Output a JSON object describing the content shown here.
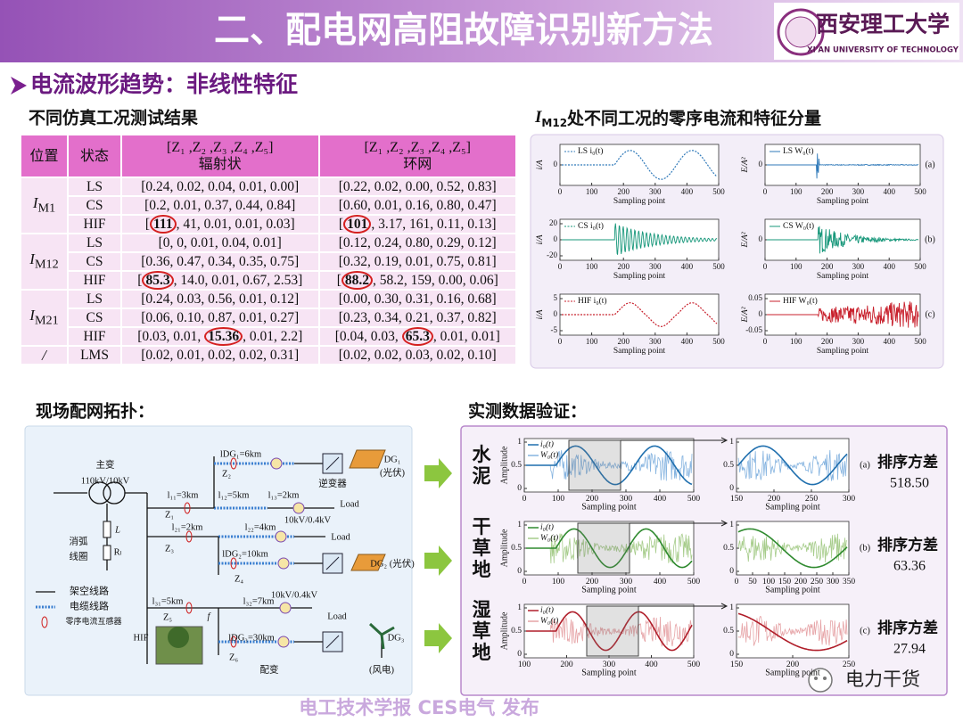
{
  "header": {
    "title": "二、配电网高阻故障识别新方法",
    "logo_name": "西安理工大学",
    "logo_sub": "XI'AN UNIVERSITY OF TECHNOLOGY"
  },
  "section": "电流波形趋势：非线性特征",
  "table": {
    "title": "不同仿真工况测试结果",
    "headers": [
      "位置",
      "状态",
      {
        "vector": "[Z₁ ,Z₂ ,Z₃ ,Z₄ ,Z₅]",
        "name": "辐射状"
      },
      {
        "vector": "[Z₁ ,Z₂ ,Z₃ ,Z₄ ,Z₅]",
        "name": "环网"
      }
    ],
    "groups": [
      {
        "position": {
          "main": "I",
          "sub": "M1"
        },
        "rows": [
          {
            "state": "LS",
            "radial": "[0.24, 0.02, 0.04, 0.01, 0.00]",
            "ring": "[0.22, 0.02, 0.00, 0.52, 0.83]"
          },
          {
            "state": "CS",
            "radial": "[0.2, 0.01, 0.37, 0.44, 0.84]",
            "ring": "[0.60, 0.01, 0.16, 0.80, 0.47]"
          },
          {
            "state": "HIF",
            "radial": {
              "before": "[",
              "circled": "111",
              "after": ", 41, 0.01, 0.01, 0.03]"
            },
            "ring": {
              "before": "[",
              "circled": "101",
              "after": ", 3.17, 161, 0.11, 0.13]"
            }
          }
        ]
      },
      {
        "position": {
          "main": "I",
          "sub": "M12"
        },
        "rows": [
          {
            "state": "LS",
            "radial": "[0, 0, 0.01, 0.04, 0.01]",
            "ring": "[0.12, 0.24, 0.80, 0.29, 0.12]"
          },
          {
            "state": "CS",
            "radial": "[0.36, 0.47, 0.34, 0.35, 0.75]",
            "ring": "[0.32, 0.19, 0.01, 0.75, 0.81]"
          },
          {
            "state": "HIF",
            "radial": {
              "before": "[",
              "circled": "85.3",
              "after": ", 14.0, 0.01, 0.67, 2.53]"
            },
            "ring": {
              "before": "[",
              "circled": "88.2",
              "after": ", 58.2, 159, 0.00, 0.06]"
            }
          }
        ]
      },
      {
        "position": {
          "main": "I",
          "sub": "M21"
        },
        "rows": [
          {
            "state": "LS",
            "radial": "[0.24, 0.03, 0.56, 0.01, 0.12]",
            "ring": "[0.00, 0.30, 0.31, 0.16, 0.68]"
          },
          {
            "state": "CS",
            "radial": "[0.06, 0.10, 0.87, 0.01, 0.27]",
            "ring": "[0.23, 0.34, 0.21, 0.37, 0.82]"
          },
          {
            "state": "HIF",
            "radial": {
              "before": "[0.03, 0.01, ",
              "circled": "15.36",
              "after": ", 0.01, 2.2]"
            },
            "ring": {
              "before": "[0.04, 0.03, ",
              "circled": "65.3",
              "after": ", 0.01, 0.01]"
            }
          }
        ]
      },
      {
        "position": {
          "main": "/"
        },
        "rows": [
          {
            "state": "LMS",
            "radial": "[0.02, 0.01, 0.02, 0.02, 0.31]",
            "ring": "[0.02, 0.02, 0.03, 0.02, 0.10]"
          }
        ]
      }
    ]
  },
  "current_features": {
    "title_main": "I",
    "title_sub": "M12",
    "title_rest": "处不同工况的零序电流和特征分量",
    "xlabel": "Sampling point",
    "xticks": [
      0,
      100,
      200,
      300,
      400,
      500
    ],
    "panels": [
      {
        "tag": "(a)",
        "color": "#2f79b9",
        "left": {
          "ylabel": "i/A",
          "legend": "LS i₀(t)",
          "yticks": [
            0
          ]
        },
        "right": {
          "ylabel": "E/A²",
          "legend": "LS W₀(t)",
          "yticks": [
            0
          ]
        }
      },
      {
        "tag": "(b)",
        "color": "#17977a",
        "left": {
          "ylabel": "i/A",
          "legend": "CS i₀(t)",
          "yticks": [
            20,
            0,
            -20
          ]
        },
        "right": {
          "ylabel": "E/A²",
          "legend": "CS W₀(t)",
          "yticks": [
            0
          ]
        }
      },
      {
        "tag": "(c)",
        "color": "#c8202c",
        "left": {
          "ylabel": "i/A",
          "legend": "HIF i₀(t)",
          "yticks": [
            5,
            0,
            -5
          ]
        },
        "right": {
          "ylabel": "E/A²",
          "legend": "HIF W₀(t)",
          "yticks": [
            0.05,
            0,
            -0.05
          ]
        }
      }
    ]
  },
  "topology": {
    "title": "现场配网拓扑：",
    "labels": [
      "主变",
      "110kV/10kV",
      "消弧",
      "线圈",
      "L",
      "Rₗ",
      "lDG₁=6km",
      "DG₁",
      "(光伏)",
      "逆变器",
      "l₁₁=3km",
      "l₁₂=5km",
      "l₁₃=2km",
      "Z₁",
      "Z₂",
      "Load",
      "10kV/0.4kV",
      "l₂₁=2km",
      "Z₃",
      "l₂₂=4km",
      "Load",
      "lDG₂=10km",
      "Z₄",
      "DG₂ (光伏)",
      "l₃₁=5km",
      "Z₅",
      "f",
      "l₃₂=7km",
      "10kV/0.4kV",
      "Load",
      "HIF",
      "lDG₃=30km",
      "Z₆",
      "配变",
      "DG₃",
      "(风电)",
      "架空线路",
      "电缆线路",
      "零序电流互感器"
    ]
  },
  "field": {
    "title": "实测数据验证：",
    "xlabel": "Sampling point",
    "ylabel": "Amplitude",
    "legend": [
      "i₀(t)",
      "W₀(t)"
    ],
    "yticks": [
      1,
      0.5,
      0
    ],
    "metric_label": "排序方差",
    "rows": [
      {
        "site": "水泥",
        "color": "#1f6fae",
        "noise": "#86b4e0",
        "left_xticks": [
          0,
          100,
          200,
          300,
          400,
          500
        ],
        "right_xticks": [
          150,
          200,
          250,
          300
        ],
        "tag": "(a)",
        "metric": "518.50"
      },
      {
        "site": "干草地",
        "color": "#2f8a2f",
        "noise": "#a6cc8a",
        "left_xticks": [
          0,
          100,
          200,
          300,
          400,
          500
        ],
        "right_xticks": [
          0,
          50,
          100,
          150,
          200,
          250,
          300,
          350
        ],
        "tag": "(b)",
        "metric": "63.36"
      },
      {
        "site": "湿草地",
        "color": "#b01e2a",
        "noise": "#e6a3a6",
        "left_xticks": [
          100,
          200,
          300,
          400,
          500
        ],
        "right_xticks": [
          150,
          200,
          250
        ],
        "tag": "(c)",
        "metric": "27.94"
      }
    ]
  },
  "footer": {
    "watermark": "电工技术学报  CES电气  发布",
    "account": "电力干货"
  }
}
